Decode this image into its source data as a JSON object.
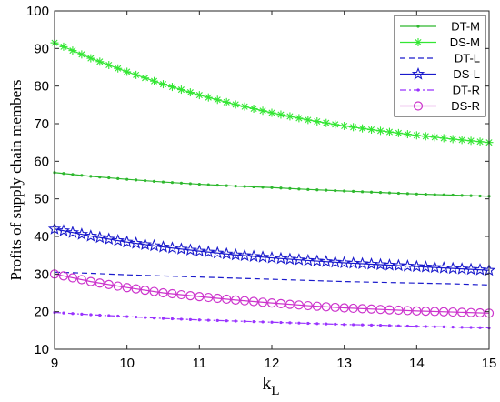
{
  "chart_data": {
    "type": "line",
    "title": "",
    "xlabel": "k",
    "xlabel_sub": "L",
    "ylabel": "Profits of supply chain members",
    "xlim": [
      9,
      15
    ],
    "ylim": [
      10,
      100
    ],
    "xticks": [
      "9",
      "10",
      "11",
      "12",
      "13",
      "14",
      "15"
    ],
    "yticks": [
      "10",
      "20",
      "30",
      "40",
      "50",
      "60",
      "70",
      "80",
      "90",
      "100"
    ],
    "legend_position": "top-right",
    "x": [
      9,
      9.5,
      10,
      10.5,
      11,
      11.5,
      12,
      12.5,
      13,
      13.5,
      14,
      14.5,
      15
    ],
    "series": [
      {
        "name": "DT-M",
        "color": "#2db82d",
        "marker": "dot",
        "dash": "solid",
        "values": [
          57.0,
          56.0,
          55.2,
          54.5,
          53.9,
          53.4,
          53.0,
          52.5,
          52.1,
          51.7,
          51.3,
          51.0,
          50.7
        ]
      },
      {
        "name": "DS-M",
        "color": "#33e633",
        "marker": "star",
        "dash": "solid",
        "values": [
          91.5,
          87.4,
          83.8,
          80.5,
          77.6,
          75.1,
          72.9,
          71.0,
          69.4,
          68.1,
          66.9,
          65.9,
          65.0
        ]
      },
      {
        "name": "DT-L",
        "color": "#1a1acc",
        "marker": "none",
        "dash": "dash",
        "values": [
          30.5,
          30.2,
          29.8,
          29.5,
          29.2,
          28.9,
          28.6,
          28.3,
          28.0,
          27.8,
          27.6,
          27.4,
          27.1
        ]
      },
      {
        "name": "DS-L",
        "color": "#1a1acc",
        "marker": "pentagram",
        "dash": "solid",
        "values": [
          42.0,
          40.1,
          38.5,
          37.2,
          36.1,
          35.1,
          34.3,
          33.6,
          33.0,
          32.5,
          32.0,
          31.5,
          31.0
        ]
      },
      {
        "name": "DT-R",
        "color": "#9933ff",
        "marker": "dot",
        "dash": "dashdot",
        "values": [
          19.8,
          19.2,
          18.7,
          18.2,
          17.8,
          17.5,
          17.2,
          16.9,
          16.6,
          16.4,
          16.1,
          15.9,
          15.7
        ]
      },
      {
        "name": "DS-R",
        "color": "#cc33cc",
        "marker": "circle",
        "dash": "solid",
        "values": [
          30.0,
          28.0,
          26.4,
          25.0,
          24.0,
          23.1,
          22.3,
          21.6,
          21.0,
          20.6,
          20.2,
          19.9,
          19.6
        ]
      }
    ]
  }
}
